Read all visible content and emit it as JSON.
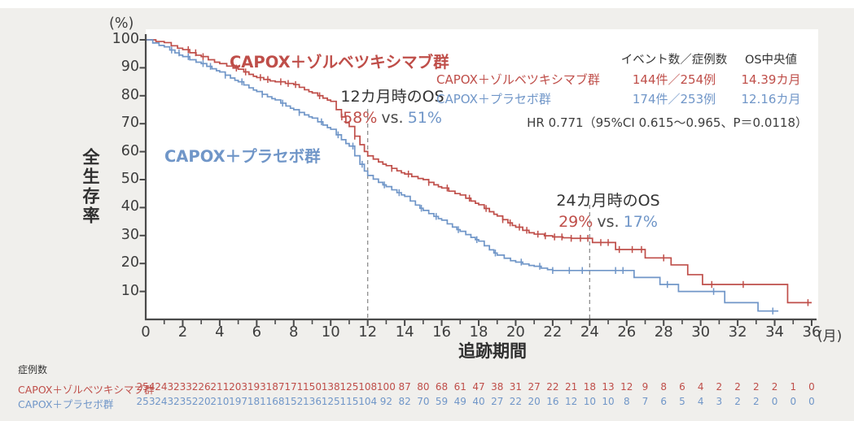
{
  "chart_data": {
    "type": "line",
    "subtype": "kaplan-meier-step",
    "xlabel": "追跡期間",
    "xunit": "(月)",
    "ylabel": "全生存率",
    "yunit": "(%)",
    "xlim": [
      0,
      36
    ],
    "ylim": [
      0,
      100
    ],
    "x_major_ticks": [
      0,
      2,
      4,
      6,
      8,
      10,
      12,
      14,
      16,
      18,
      20,
      22,
      24,
      26,
      28,
      30,
      32,
      34,
      36
    ],
    "x_minor_step": 1,
    "y_ticks": [
      10,
      20,
      30,
      40,
      50,
      60,
      70,
      80,
      90,
      100
    ],
    "grid": false,
    "series": [
      {
        "name": "CAPOX＋ゾルベツキシマブ群",
        "color": "#bf4e49",
        "monthly_os_pct": [
          100,
          99,
          96.5,
          94,
          91.5,
          89.5,
          86.5,
          85,
          84,
          81,
          78,
          69,
          58.5,
          55,
          52,
          50,
          47,
          44.5,
          41,
          37,
          33,
          30.5,
          29.5,
          29,
          29
        ],
        "steps_after_month24": [
          [
            24.15,
            27.5
          ],
          [
            25.4,
            25
          ],
          [
            27.0,
            22
          ],
          [
            28.4,
            19.5
          ],
          [
            29.3,
            16
          ],
          [
            30.1,
            12.5
          ],
          [
            34.7,
            6
          ]
        ],
        "end_month": 36,
        "censor_months": [
          2.3,
          2.7,
          3.1,
          4.9,
          5.4,
          6.2,
          6.6,
          7.3,
          7.7,
          8.1,
          9.4,
          10.6,
          11.3,
          13.3,
          14.2,
          15.3,
          16.3,
          17.5,
          18.4,
          19.3,
          19.7,
          20.2,
          20.6,
          21.2,
          21.6,
          22.1,
          22.5,
          23.0,
          23.5,
          23.9,
          24.6,
          25.0,
          25.6,
          26.3,
          26.8,
          28.0,
          30.6,
          32.3,
          35.8
        ]
      },
      {
        "name": "CAPOX＋プラセボ群",
        "color": "#7096c8",
        "monthly_os_pct": [
          100,
          97.5,
          94,
          91.5,
          88.5,
          85,
          81.5,
          78.5,
          75,
          72,
          68,
          62,
          51.5,
          47.5,
          44,
          39,
          35.5,
          31.5,
          28,
          23,
          20.5,
          19,
          17.5,
          17.5,
          17.5
        ],
        "steps_after_month24": [
          [
            26.4,
            15
          ],
          [
            27.8,
            12.5
          ],
          [
            28.8,
            10
          ],
          [
            31.3,
            6
          ],
          [
            33.1,
            3
          ]
        ],
        "end_month": 34.2,
        "censor_months": [
          1.4,
          1.8,
          2.3,
          3.1,
          3.5,
          4.3,
          5.2,
          6.3,
          7.4,
          8.3,
          9.5,
          10.4,
          11.2,
          11.7,
          12.9,
          13.7,
          14.9,
          15.7,
          16.9,
          17.9,
          18.9,
          20.3,
          21.3,
          22.0,
          22.9,
          23.6,
          25.4,
          25.8,
          28.2,
          30.7,
          33.9
        ]
      }
    ],
    "annotations": [
      {
        "title": "12カ月時のOS",
        "value_zolbe": "58%",
        "vs": "vs.",
        "value_placebo": "51%",
        "month": 12
      },
      {
        "title": "24カ月時のOS",
        "value_zolbe": "29%",
        "vs": "vs.",
        "value_placebo": "17%",
        "month": 24
      }
    ],
    "legend": {
      "col_events": "イベント数／症例数",
      "col_median": "OS中央値",
      "rows": [
        {
          "label": "CAPOX＋ゾルベツキシマブ群",
          "events": "144件／254例",
          "median": "14.39カ月"
        },
        {
          "label": "CAPOX＋プラセボ群",
          "events": "174件／253例",
          "median": "12.16カ月"
        }
      ],
      "hr_text": "HR 0.771（95%CI 0.615〜0.965、P＝0.0118）"
    },
    "at_risk": {
      "header": "症例数",
      "rows": [
        {
          "label": "CAPOX＋ゾルベツキシマブ群",
          "values": [
            254,
            243,
            233,
            226,
            211,
            203,
            193,
            187,
            171,
            150,
            138,
            125,
            108,
            100,
            87,
            80,
            68,
            61,
            47,
            38,
            31,
            27,
            22,
            21,
            18,
            13,
            12,
            9,
            8,
            6,
            4,
            2,
            2,
            2,
            2,
            1,
            0
          ]
        },
        {
          "label": "CAPOX＋プラセボ群",
          "values": [
            253,
            243,
            235,
            220,
            210,
            197,
            181,
            168,
            152,
            136,
            125,
            115,
            104,
            92,
            82,
            70,
            59,
            49,
            40,
            27,
            22,
            20,
            16,
            12,
            10,
            10,
            8,
            7,
            6,
            5,
            4,
            3,
            2,
            2,
            0,
            0,
            0
          ]
        }
      ]
    },
    "colors": {
      "zolbetuximab": "#bf4e49",
      "placebo": "#7096c8",
      "text": "#3a3a3a",
      "axis": "#4a4a4a",
      "dashed_guide": "#8f8f8f",
      "background": "#f0efec",
      "plot_background": "#ffffff"
    }
  }
}
